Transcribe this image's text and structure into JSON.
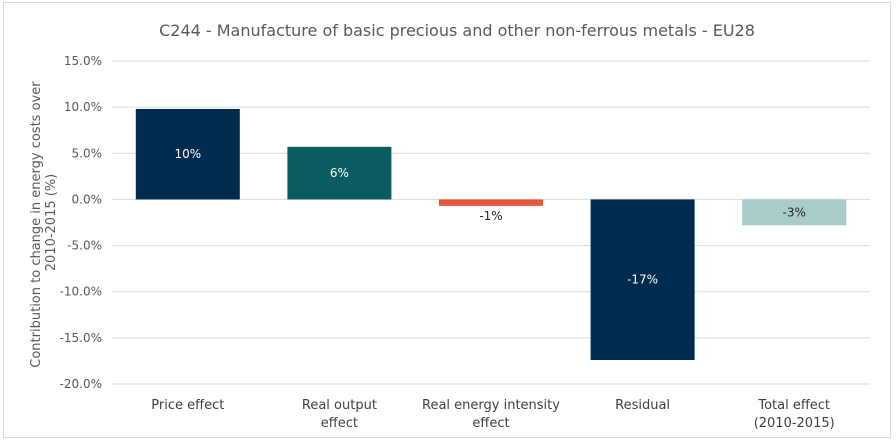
{
  "chart_data": {
    "type": "bar",
    "title": "C244 - Manufacture of basic precious and other non-ferrous metals - EU28",
    "ylabel_lines": [
      "Contribution to change in energy costs over",
      "2010-2015 (%)"
    ],
    "xlabel": "",
    "categories": [
      [
        "Price effect"
      ],
      [
        "Real output",
        "effect"
      ],
      [
        "Real energy intensity",
        "effect"
      ],
      [
        "Residual"
      ],
      [
        "Total effect",
        "(2010-2015)"
      ]
    ],
    "values": [
      9.8,
      5.7,
      -0.7,
      -17.4,
      -2.8
    ],
    "data_labels": [
      "10%",
      "6%",
      "-1%",
      "-17%",
      "-3%"
    ],
    "colors": [
      "#002b4f",
      "#0a5c60",
      "#e8553e",
      "#002b4f",
      "#a9cbca"
    ],
    "label_colors": [
      "light",
      "light",
      "dark",
      "light",
      "dark"
    ],
    "ylim": [
      -20,
      15
    ],
    "yticks": [
      15,
      10,
      5,
      0,
      -5,
      -10,
      -15,
      -20
    ],
    "ytick_labels": [
      "15.0%",
      "10.0%",
      "5.0%",
      "0.0%",
      "-5.0%",
      "-10.0%",
      "-15.0%",
      "-20.0%"
    ],
    "grid": true,
    "legend": "none"
  }
}
